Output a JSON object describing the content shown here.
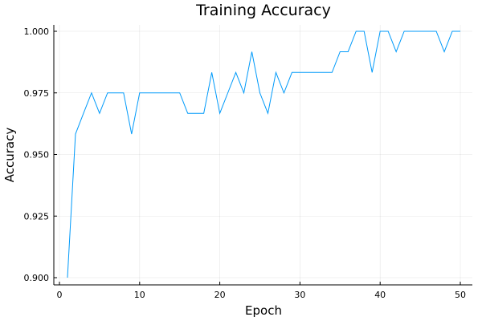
{
  "chart_data": {
    "type": "line",
    "title": "Training Accuracy",
    "xlabel": "Epoch",
    "ylabel": "Accuracy",
    "xlim": [
      0,
      50
    ],
    "ylim": [
      0.9,
      1.0
    ],
    "xticks": [
      0,
      10,
      20,
      30,
      40,
      50
    ],
    "xtick_labels": [
      "0",
      "10",
      "20",
      "30",
      "40",
      "50"
    ],
    "yticks": [
      0.9,
      0.925,
      0.95,
      0.975,
      1.0
    ],
    "ytick_labels": [
      "0.900",
      "0.925",
      "0.950",
      "0.975",
      "1.000"
    ],
    "grid": true,
    "legend": false,
    "series_color": "#009AFA",
    "series": [
      {
        "x": [
          1,
          2,
          3,
          4,
          5,
          6,
          7,
          8,
          9,
          10,
          11,
          12,
          13,
          14,
          15,
          16,
          17,
          18,
          19,
          20,
          21,
          22,
          23,
          24,
          25,
          26,
          27,
          28,
          29,
          30,
          31,
          32,
          33,
          34,
          35,
          36,
          37,
          38,
          39,
          40,
          41,
          42,
          43,
          44,
          45,
          46,
          47,
          48,
          49,
          50
        ],
        "y": [
          0.9,
          0.9583,
          0.9667,
          0.975,
          0.9667,
          0.975,
          0.975,
          0.975,
          0.9583,
          0.975,
          0.975,
          0.975,
          0.975,
          0.975,
          0.975,
          0.9667,
          0.9667,
          0.9667,
          0.9833,
          0.9667,
          0.975,
          0.9833,
          0.975,
          0.9917,
          0.975,
          0.9667,
          0.9833,
          0.975,
          0.9833,
          0.9833,
          0.9833,
          0.9833,
          0.9833,
          0.9833,
          0.9917,
          0.9917,
          1.0,
          1.0,
          0.9833,
          1.0,
          1.0,
          0.9917,
          1.0,
          1.0,
          1.0,
          1.0,
          1.0,
          0.9917,
          1.0,
          1.0
        ]
      }
    ]
  }
}
